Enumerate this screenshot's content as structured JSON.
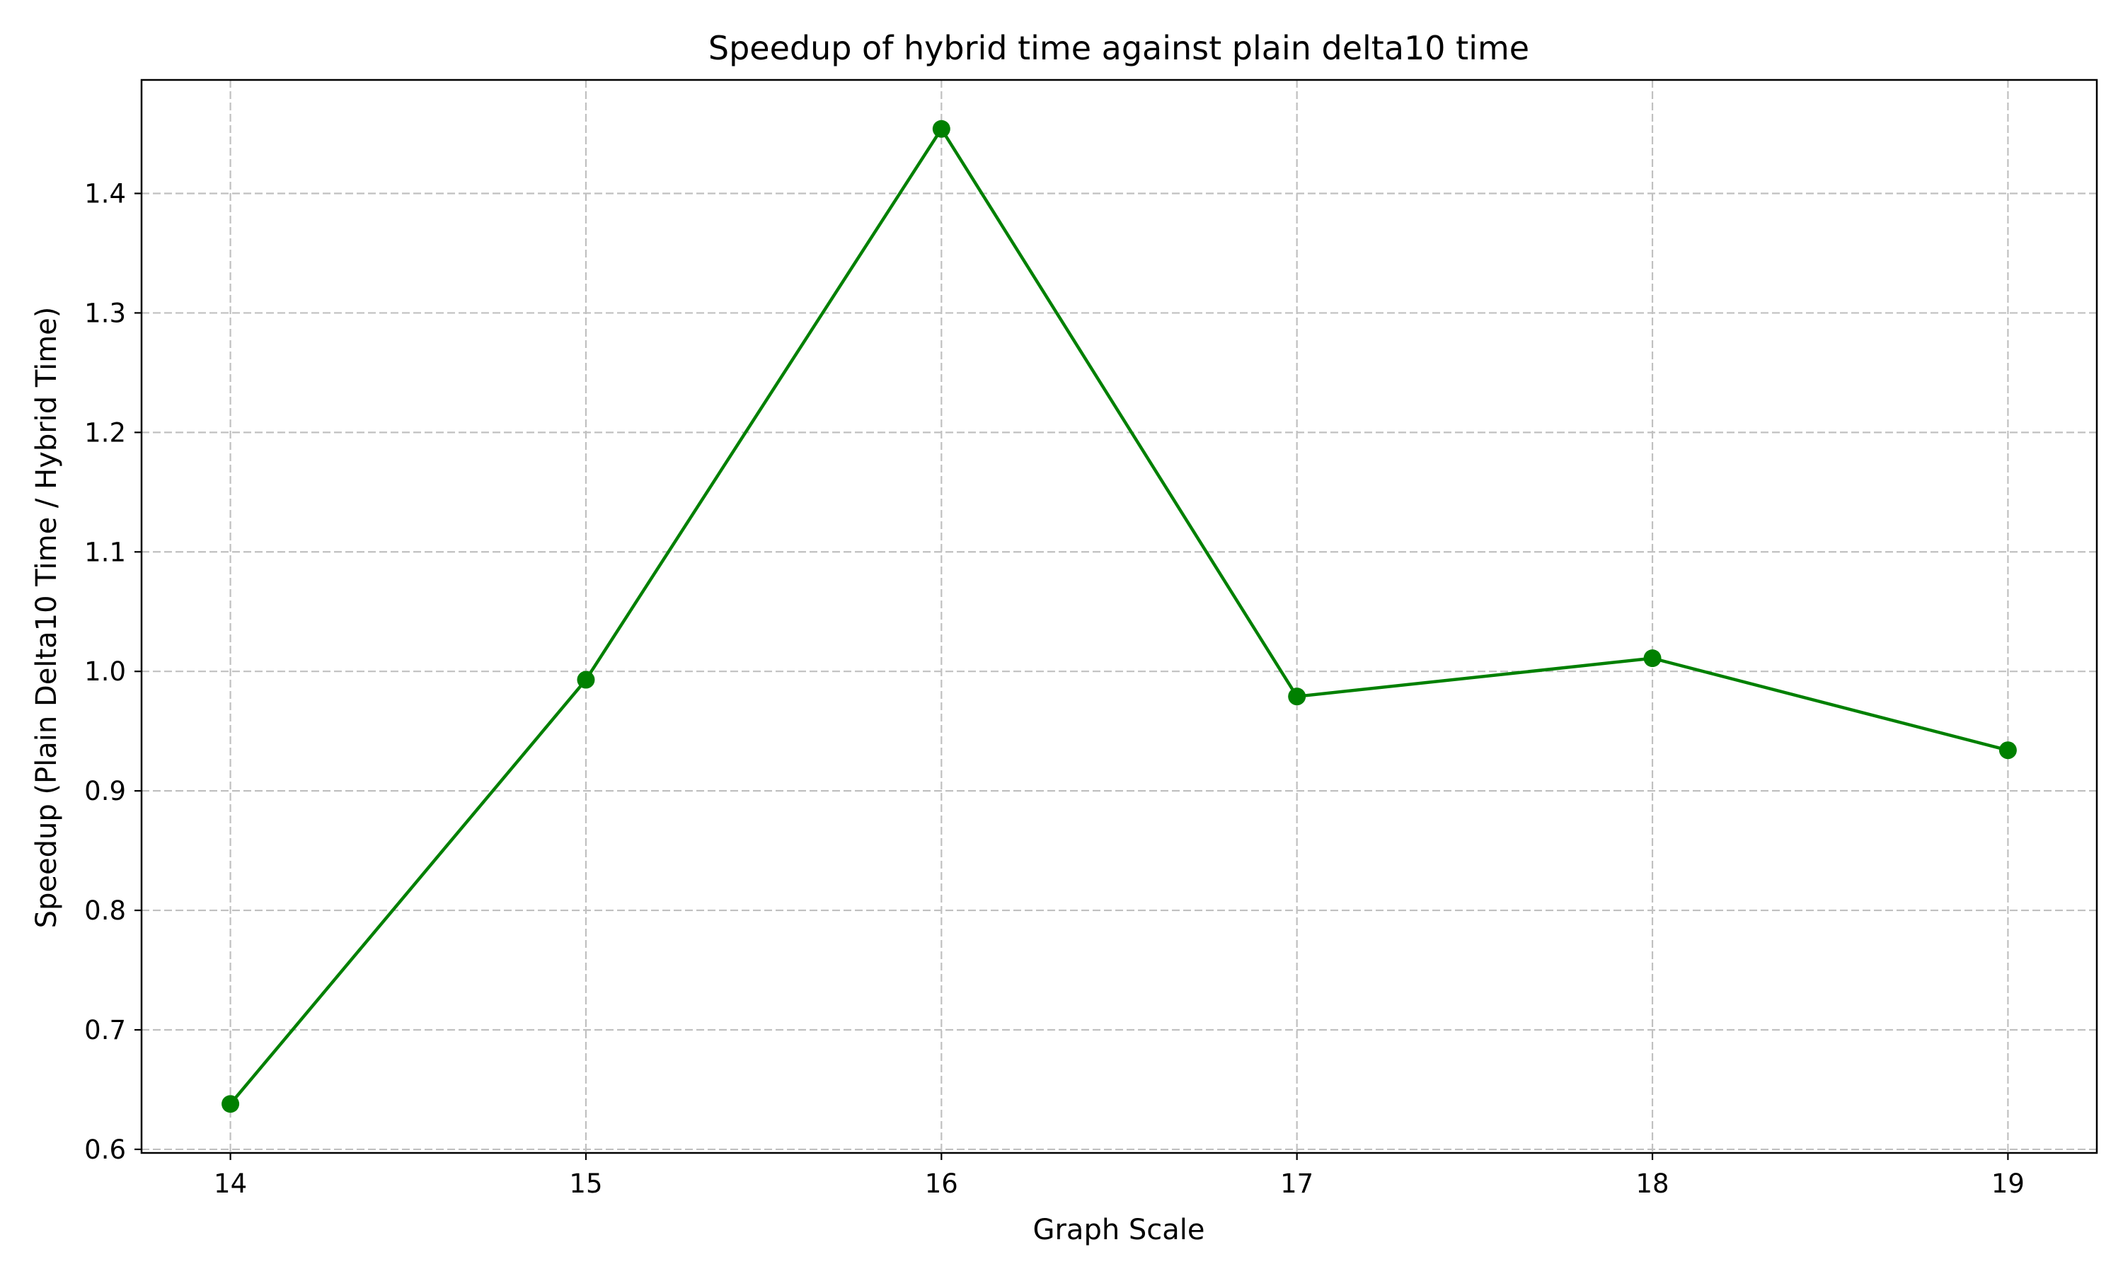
{
  "chart_data": {
    "type": "line",
    "title": "Speedup of hybrid time against plain delta10 time",
    "xlabel": "Graph Scale",
    "ylabel": "Speedup (Plain Delta10 Time / Hybrid Time)",
    "x": [
      14,
      15,
      16,
      17,
      18,
      19
    ],
    "series": [
      {
        "values": [
          0.638,
          0.993,
          1.454,
          0.979,
          1.011,
          0.934
        ],
        "color": "#008000",
        "marker": "circle"
      }
    ],
    "xticks": [
      14,
      15,
      16,
      17,
      18,
      19
    ],
    "yticks": [
      0.6,
      0.7,
      0.8,
      0.9,
      1.0,
      1.1,
      1.2,
      1.3,
      1.4
    ],
    "ytick_labels": [
      "0.6",
      "0.7",
      "0.8",
      "0.9",
      "1.0",
      "1.1",
      "1.2",
      "1.3",
      "1.4"
    ],
    "xlim": [
      13.75,
      19.25
    ],
    "ylim": [
      0.597,
      1.495
    ],
    "grid": true,
    "grid_style": "dashed",
    "grid_color": "#c0c0c0"
  }
}
